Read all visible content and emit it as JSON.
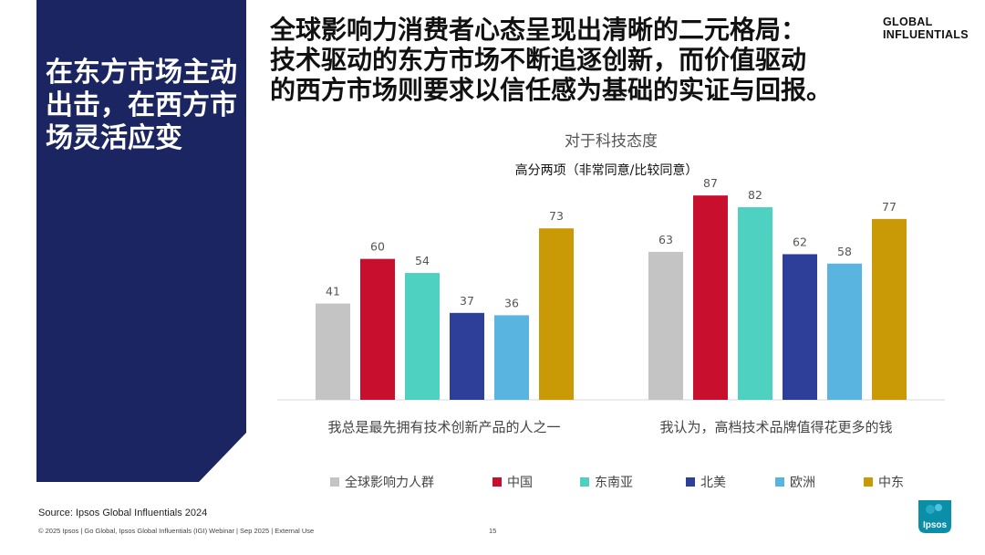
{
  "side_title": "在东方市场主动出击，在西方市场灵活应变",
  "headline": {
    "line1": "全球影响力消费者心态呈现出清晰的二元格局：",
    "line2": "技术驱动的东方市场不断追逐创新，而价值驱动",
    "line3": "的西方市场则要求以信任感为基础的实证与回报。"
  },
  "brand": {
    "line1": "GLOBAL",
    "line2": "INFLUENTIALS"
  },
  "source": "Source: Ipsos Global Influentials 2024",
  "footer": "© 2025 Ipsos | Go Global, Ipsos Global Influentials (IGI) Webinar | Sep 2025 | External Use",
  "page_number": "15",
  "logo_text": "Ipsos",
  "colors": {
    "panel": "#1a2561",
    "global": "#c4c4c4",
    "china": "#c8102e",
    "sea": "#4fd1c1",
    "na": "#2d3f99",
    "europe": "#5ab4e0",
    "me": "#c99a06"
  },
  "chart_data": {
    "type": "bar",
    "title": "对于科技态度",
    "subtitle": "高分两项（非常同意/比较同意）",
    "categories": [
      "我总是最先拥有技术创新产品的人之一",
      "我认为，高档技术品牌值得花更多的钱"
    ],
    "series": [
      {
        "name": "全球影响力人群",
        "color": "#c4c4c4",
        "values": [
          41,
          63
        ]
      },
      {
        "name": "中国",
        "color": "#c8102e",
        "values": [
          60,
          87
        ]
      },
      {
        "name": "东南亚",
        "color": "#4fd1c1",
        "values": [
          54,
          82
        ]
      },
      {
        "name": "北美",
        "color": "#2d3f99",
        "values": [
          37,
          62
        ]
      },
      {
        "name": "欧洲",
        "color": "#5ab4e0",
        "values": [
          36,
          58
        ]
      },
      {
        "name": "中东",
        "color": "#c99a06",
        "values": [
          73,
          77
        ]
      }
    ],
    "ylim": [
      0,
      100
    ],
    "grid": false,
    "legend_position": "bottom",
    "data_labels": true
  }
}
